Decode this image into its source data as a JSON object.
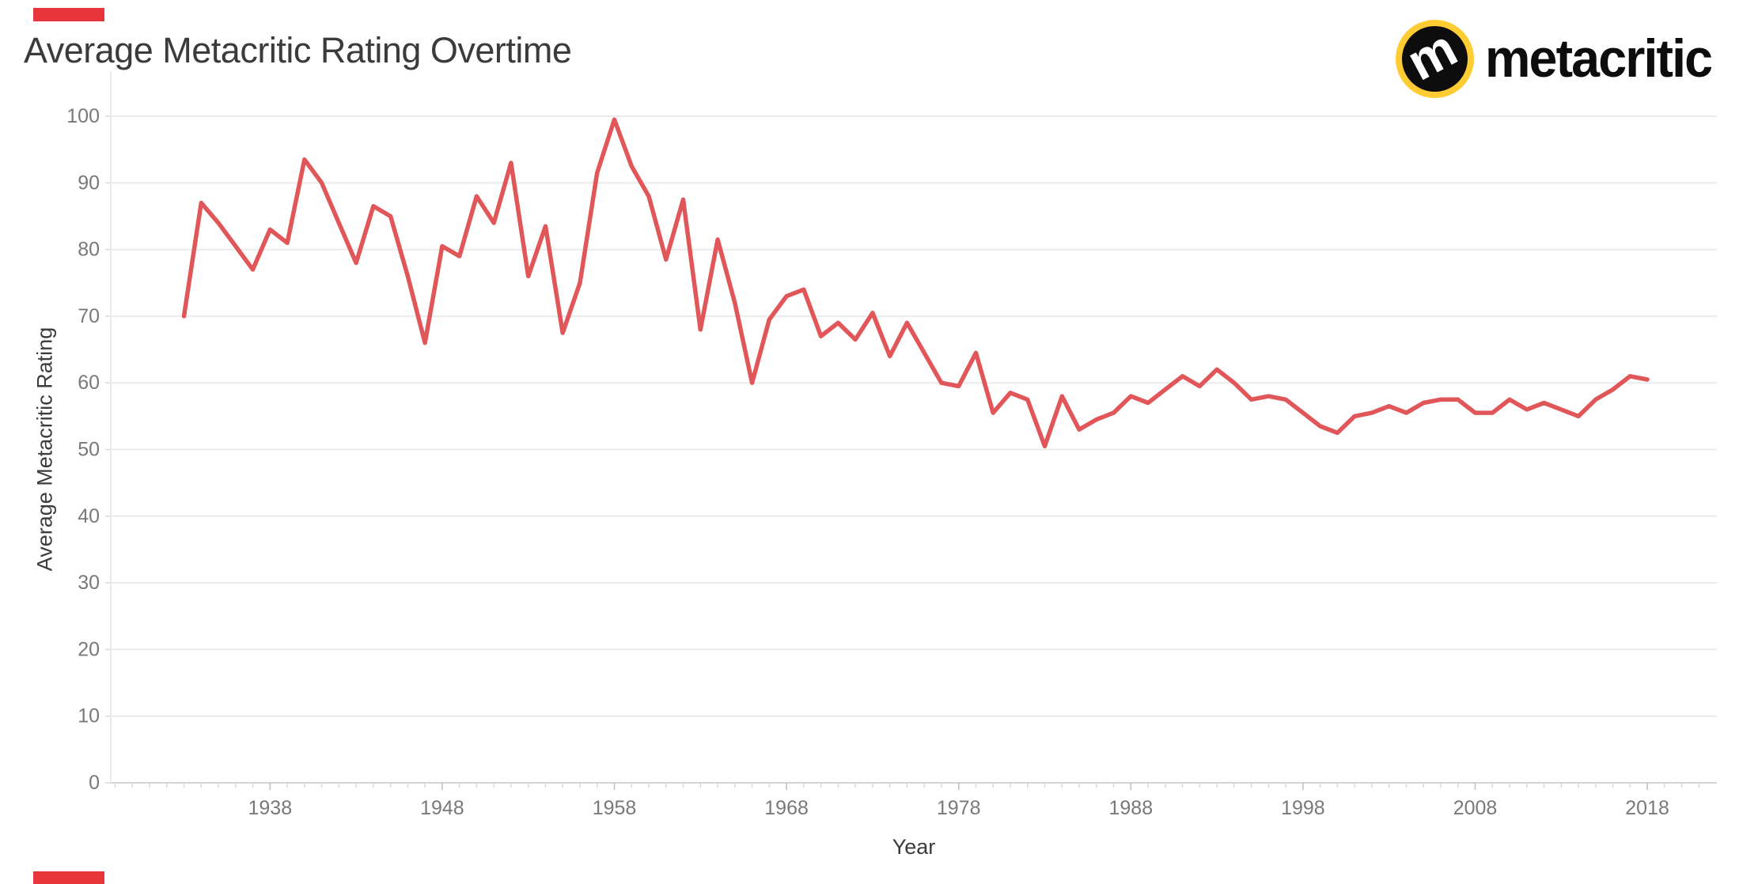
{
  "header": {
    "title": "Average Metacritic Rating Overtime"
  },
  "logo": {
    "brand": "metacritic",
    "monogram": "m",
    "yellow": "#ffcc33",
    "black": "#0d0d0d",
    "white": "#ffffff"
  },
  "axes": {
    "xlabel": "Year",
    "ylabel": "Average Metacritic Rating"
  },
  "chart_data": {
    "type": "line",
    "title": "Average Metacritic Rating Overtime",
    "xlabel": "Year",
    "ylabel": "Average Metacritic Rating",
    "line_color": "#e15759",
    "grid": true,
    "legend": false,
    "ylim": [
      0,
      100
    ],
    "xlim_years": [
      1933,
      2018
    ],
    "y_ticks": [
      0,
      10,
      20,
      30,
      40,
      50,
      60,
      70,
      80,
      90,
      100
    ],
    "x_ticks": [
      1938,
      1948,
      1958,
      1968,
      1978,
      1988,
      1998,
      2008,
      2018
    ],
    "years": [
      1933,
      1934,
      1935,
      1936,
      1937,
      1938,
      1939,
      1940,
      1941,
      1942,
      1943,
      1944,
      1945,
      1946,
      1947,
      1948,
      1949,
      1950,
      1951,
      1952,
      1953,
      1954,
      1955,
      1956,
      1957,
      1958,
      1959,
      1960,
      1961,
      1962,
      1963,
      1964,
      1965,
      1966,
      1967,
      1968,
      1969,
      1970,
      1971,
      1972,
      1973,
      1974,
      1975,
      1976,
      1977,
      1978,
      1979,
      1980,
      1981,
      1982,
      1983,
      1984,
      1985,
      1986,
      1987,
      1988,
      1989,
      1990,
      1991,
      1992,
      1993,
      1994,
      1995,
      1996,
      1997,
      1998,
      1999,
      2000,
      2001,
      2002,
      2003,
      2004,
      2005,
      2006,
      2007,
      2008,
      2009,
      2010,
      2011,
      2012,
      2013,
      2014,
      2015,
      2016,
      2017,
      2018
    ],
    "values": [
      70,
      87,
      84,
      80.5,
      77,
      83,
      81,
      93.5,
      90,
      84,
      78,
      86.5,
      85,
      76,
      66,
      80.5,
      79,
      88,
      84,
      93,
      76,
      83.5,
      67.5,
      75,
      91.5,
      99.5,
      92.5,
      88,
      78.5,
      87.5,
      68,
      81.5,
      72,
      60,
      69.5,
      73,
      74,
      67,
      69,
      66.5,
      70.5,
      64,
      69,
      64.5,
      60,
      59.5,
      64.5,
      55.5,
      58.5,
      57.5,
      50.5,
      58,
      53,
      54.5,
      55.5,
      58,
      57,
      59,
      61,
      59.5,
      62,
      60,
      57.5,
      58,
      57.5,
      55.5,
      53.5,
      52.5,
      55,
      55.5,
      56.5,
      55.5,
      57,
      57.5,
      57.5,
      55.5,
      55.5,
      57.5,
      56,
      57,
      56,
      55,
      57.5,
      59,
      61,
      60.5
    ]
  },
  "style_colors": {
    "title_text": "#3b3b3b",
    "tick_text": "#797979",
    "gridline": "#ebebeb",
    "axis_line": "#d4d4d4",
    "tick_mark": "#d9d9d9"
  },
  "decorations": {
    "red_marker_color": "#e8353c"
  }
}
